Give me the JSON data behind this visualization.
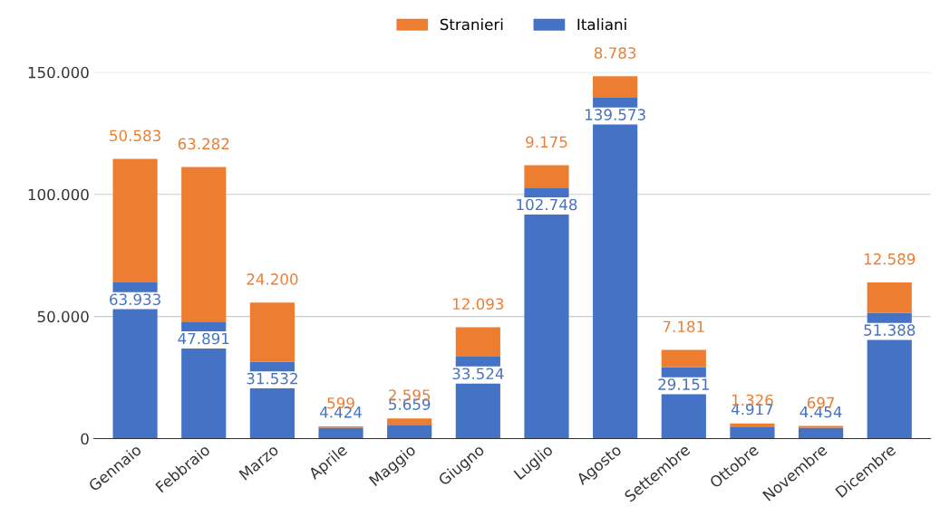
{
  "chart_data": {
    "type": "bar",
    "stacked": true,
    "categories": [
      "Gennaio",
      "Febbraio",
      "Marzo",
      "Aprile",
      "Maggio",
      "Giugno",
      "Luglio",
      "Agosto",
      "Settembre",
      "Ottobre",
      "Novembre",
      "Dicembre"
    ],
    "series": [
      {
        "name": "Italiani",
        "color": "#4472c4",
        "values": [
          63933,
          47891,
          31532,
          4424,
          5659,
          33524,
          102748,
          139573,
          29151,
          4917,
          4454,
          51388
        ],
        "value_labels": [
          "63.933",
          "47.891",
          "31.532",
          "4.424",
          "5.659",
          "33.524",
          "102.748",
          "139.573",
          "29.151",
          "4.917",
          "4.454",
          "51.388"
        ]
      },
      {
        "name": "Stranieri",
        "color": "#ed7d31",
        "values": [
          50583,
          63282,
          24200,
          599,
          2595,
          12093,
          9175,
          8783,
          7181,
          1326,
          697,
          12589
        ],
        "value_labels": [
          "50.583",
          "63.282",
          "24.200",
          "599",
          "2.595",
          "12.093",
          "9.175",
          "8.783",
          "7.181",
          "1.326",
          "697",
          "12.589"
        ]
      }
    ],
    "ylim": [
      0,
      150000
    ],
    "yticks": [
      {
        "value": 0,
        "label": "0"
      },
      {
        "value": 50000,
        "label": "50.000"
      },
      {
        "value": 100000,
        "label": "100.000"
      },
      {
        "value": 150000,
        "label": "150.000"
      }
    ],
    "grid": "y",
    "legend": "top"
  }
}
